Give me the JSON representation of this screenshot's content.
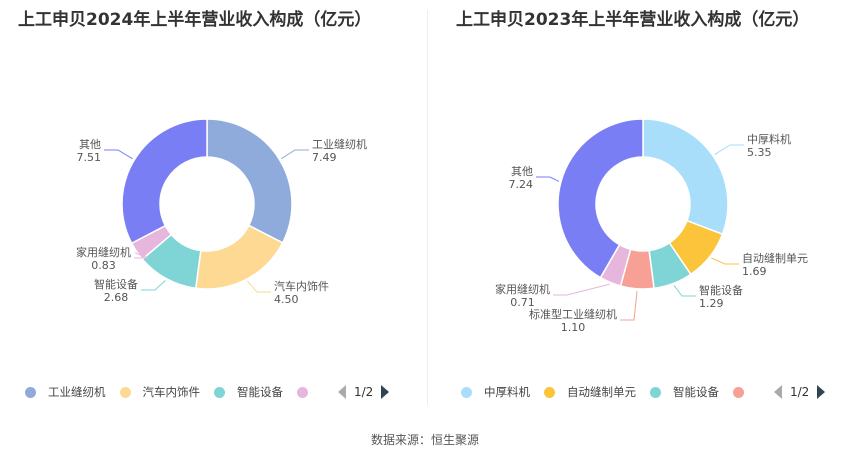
{
  "chart_data": [
    {
      "type": "pie",
      "title": "上工申贝2024年上半年营业收入构成（亿元）",
      "slices": [
        {
          "label": "工业缝纫机",
          "value": 7.49,
          "display": "7.49",
          "color": "#8fabdb"
        },
        {
          "label": "汽车内饰件",
          "value": 4.5,
          "display": "4.50",
          "color": "#fdd993"
        },
        {
          "label": "智能设备",
          "value": 2.68,
          "display": "2.68",
          "color": "#7fd4d6"
        },
        {
          "label": "家用缝纫机",
          "value": 0.83,
          "display": "0.83",
          "color": "#e6b6dc"
        },
        {
          "label": "其他",
          "value": 7.51,
          "display": "7.51",
          "color": "#7a7ef5"
        }
      ],
      "legend": {
        "items": [
          "工业缝纫机",
          "汽车内饰件",
          "智能设备",
          ""
        ],
        "page": "1/2"
      }
    },
    {
      "type": "pie",
      "title": "上工申贝2023年上半年营业收入构成（亿元）",
      "slices": [
        {
          "label": "中厚料机",
          "value": 5.35,
          "display": "5.35",
          "color": "#a9defa"
        },
        {
          "label": "自动缝制单元",
          "value": 1.69,
          "display": "1.69",
          "color": "#fbc43a"
        },
        {
          "label": "智能设备",
          "value": 1.29,
          "display": "1.29",
          "color": "#7fd4d6"
        },
        {
          "label": "标准型工业缝纫机",
          "value": 1.1,
          "display": "1.10",
          "color": "#f6a096"
        },
        {
          "label": "家用缝纫机",
          "value": 0.71,
          "display": "0.71",
          "color": "#e6b6dc"
        },
        {
          "label": "其他",
          "value": 7.24,
          "display": "7.24",
          "color": "#7a7ef5"
        }
      ],
      "legend": {
        "items": [
          "中厚料机",
          "自动缝制单元",
          "智能设备",
          ""
        ],
        "page": "1/2"
      }
    }
  ],
  "source": "数据来源：恒生聚源"
}
